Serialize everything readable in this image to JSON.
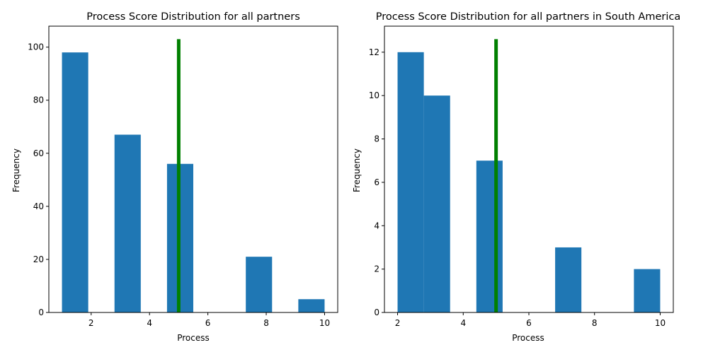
{
  "colors": {
    "bar": "#1f77b4",
    "marker": "#008000",
    "axis": "#000000",
    "background": "#ffffff"
  },
  "chart_data": [
    {
      "type": "bar",
      "title": "Process Score Distribution for all partners",
      "xlabel": "Process",
      "ylabel": "Frequency",
      "xlim": [
        0.55,
        10.45
      ],
      "ylim": [
        0,
        107.9
      ],
      "xticks": [
        2,
        4,
        6,
        8,
        10
      ],
      "yticks": [
        0,
        20,
        40,
        60,
        80,
        100
      ],
      "bins": [
        {
          "x0": 1.0,
          "x1": 1.9,
          "value": 98
        },
        {
          "x0": 1.9,
          "x1": 2.8,
          "value": 0
        },
        {
          "x0": 2.8,
          "x1": 3.7,
          "value": 67
        },
        {
          "x0": 3.7,
          "x1": 4.6,
          "value": 0
        },
        {
          "x0": 4.6,
          "x1": 5.5,
          "value": 56
        },
        {
          "x0": 5.5,
          "x1": 6.4,
          "value": 0
        },
        {
          "x0": 6.4,
          "x1": 7.3,
          "value": 0
        },
        {
          "x0": 7.3,
          "x1": 8.2,
          "value": 21
        },
        {
          "x0": 8.2,
          "x1": 9.1,
          "value": 0
        },
        {
          "x0": 9.1,
          "x1": 10.0,
          "value": 5
        }
      ],
      "vline": {
        "x": 5.0,
        "ymax": 103
      }
    },
    {
      "type": "bar",
      "title": "Process Score Distribution for all partners in South America",
      "xlabel": "Process",
      "ylabel": "Frequency",
      "xlim": [
        1.6,
        10.4
      ],
      "ylim": [
        0,
        13.2
      ],
      "xticks": [
        2,
        4,
        6,
        8,
        10
      ],
      "yticks": [
        0,
        2,
        4,
        6,
        8,
        10,
        12
      ],
      "bins": [
        {
          "x0": 2.0,
          "x1": 2.8,
          "value": 12
        },
        {
          "x0": 2.8,
          "x1": 3.6,
          "value": 10
        },
        {
          "x0": 3.6,
          "x1": 4.4,
          "value": 0
        },
        {
          "x0": 4.4,
          "x1": 5.2,
          "value": 7
        },
        {
          "x0": 5.2,
          "x1": 6.0,
          "value": 0
        },
        {
          "x0": 6.0,
          "x1": 6.8,
          "value": 0
        },
        {
          "x0": 6.8,
          "x1": 7.6,
          "value": 3
        },
        {
          "x0": 7.6,
          "x1": 8.4,
          "value": 0
        },
        {
          "x0": 8.4,
          "x1": 9.2,
          "value": 0
        },
        {
          "x0": 9.2,
          "x1": 10.0,
          "value": 2
        }
      ],
      "vline": {
        "x": 5.0,
        "ymax": 12.6
      }
    }
  ]
}
